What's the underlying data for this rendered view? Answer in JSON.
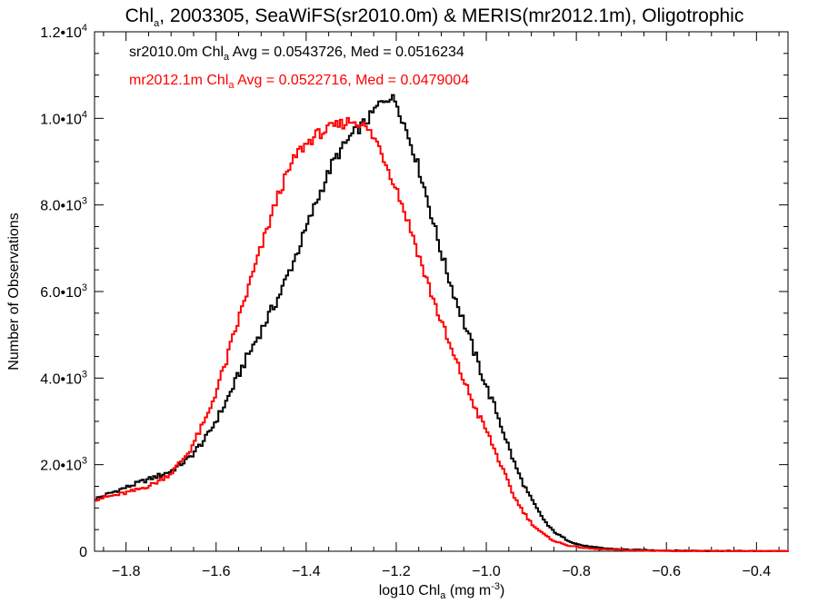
{
  "chart_data": {
    "type": "line",
    "title": {
      "pre": "Chl",
      "sub": "a",
      "post": ", 2003305, SeaWiFS(sr2010.0m) & MERIS(mr2012.1m), Oligotrophic"
    },
    "xlabel": {
      "pre": "log10 Chl",
      "sub": "a",
      "post": " (mg m",
      "sup": "-3",
      "end": ")"
    },
    "ylabel": "Number of Observations",
    "xlim": [
      -1.87,
      -0.33
    ],
    "ylim": [
      0,
      12000
    ],
    "x_ticks": [
      {
        "value": -1.8,
        "label": "−1.8"
      },
      {
        "value": -1.6,
        "label": "−1.6"
      },
      {
        "value": -1.4,
        "label": "−1.4"
      },
      {
        "value": -1.2,
        "label": "−1.2"
      },
      {
        "value": -1.0,
        "label": "−1.0"
      },
      {
        "value": -0.8,
        "label": "−0.8"
      },
      {
        "value": -0.6,
        "label": "−0.6"
      },
      {
        "value": -0.4,
        "label": "−0.4"
      }
    ],
    "y_ticks": [
      {
        "value": 0,
        "mant": "0",
        "exp": ""
      },
      {
        "value": 2000,
        "mant": "2.0•10",
        "exp": "3"
      },
      {
        "value": 4000,
        "mant": "4.0•10",
        "exp": "3"
      },
      {
        "value": 6000,
        "mant": "6.0•10",
        "exp": "3"
      },
      {
        "value": 8000,
        "mant": "8.0•10",
        "exp": "3"
      },
      {
        "value": 10000,
        "mant": "1.0•10",
        "exp": "4"
      },
      {
        "value": 12000,
        "mant": "1.2•10",
        "exp": "4"
      }
    ],
    "grid": false,
    "legend_position": "top-left",
    "series": [
      {
        "name": "sr2010.0m",
        "color": "#000000",
        "legend": {
          "pre": "sr2010.0m Chl",
          "sub": "a",
          "post": " Avg = 0.0543726, Med = 0.0516234"
        },
        "x": [
          -1.87,
          -1.82,
          -1.78,
          -1.74,
          -1.7,
          -1.66,
          -1.62,
          -1.58,
          -1.54,
          -1.5,
          -1.46,
          -1.42,
          -1.38,
          -1.34,
          -1.3,
          -1.26,
          -1.24,
          -1.22,
          -1.2,
          -1.18,
          -1.16,
          -1.14,
          -1.12,
          -1.1,
          -1.08,
          -1.06,
          -1.04,
          -1.02,
          -1.0,
          -0.98,
          -0.96,
          -0.94,
          -0.92,
          -0.9,
          -0.88,
          -0.86,
          -0.84,
          -0.82,
          -0.8,
          -0.78,
          -0.76,
          -0.74,
          -0.72,
          -0.7,
          -0.68,
          -0.66,
          -0.64,
          -0.62,
          -0.6,
          -0.55,
          -0.5,
          -0.45,
          -0.4,
          -0.33
        ],
        "y": [
          1200,
          1400,
          1550,
          1700,
          1850,
          2150,
          2650,
          3400,
          4300,
          5100,
          5900,
          6900,
          8000,
          9000,
          9600,
          10000,
          10300,
          10500,
          10400,
          9800,
          9200,
          8500,
          7700,
          6900,
          6200,
          5600,
          5000,
          4400,
          3800,
          3300,
          2700,
          2100,
          1600,
          1200,
          850,
          550,
          380,
          260,
          170,
          120,
          90,
          70,
          55,
          45,
          35,
          30,
          25,
          20,
          15,
          10,
          8,
          5,
          3,
          2
        ]
      },
      {
        "name": "mr2012.1m",
        "color": "#ff0000",
        "legend": {
          "pre": "mr2012.1m Chl",
          "sub": "a",
          "post": " Avg = 0.0522716, Med = 0.0479004"
        },
        "x": [
          -1.87,
          -1.82,
          -1.78,
          -1.74,
          -1.7,
          -1.66,
          -1.62,
          -1.58,
          -1.54,
          -1.5,
          -1.46,
          -1.42,
          -1.38,
          -1.34,
          -1.3,
          -1.28,
          -1.26,
          -1.24,
          -1.22,
          -1.2,
          -1.18,
          -1.16,
          -1.14,
          -1.12,
          -1.1,
          -1.08,
          -1.06,
          -1.04,
          -1.02,
          -1.0,
          -0.98,
          -0.96,
          -0.94,
          -0.92,
          -0.9,
          -0.88,
          -0.86,
          -0.84,
          -0.82,
          -0.8,
          -0.78,
          -0.76,
          -0.74,
          -0.72,
          -0.7,
          -0.68,
          -0.66,
          -0.64,
          -0.62,
          -0.6,
          -0.55,
          -0.5,
          -0.45,
          -0.4,
          -0.33
        ],
        "y": [
          1200,
          1300,
          1400,
          1550,
          1800,
          2300,
          3100,
          4300,
          5700,
          7000,
          8300,
          9200,
          9600,
          9800,
          9950,
          9900,
          9700,
          9400,
          8900,
          8400,
          7800,
          7200,
          6500,
          5900,
          5300,
          4700,
          4200,
          3700,
          3200,
          2800,
          2300,
          1800,
          1300,
          950,
          650,
          450,
          300,
          200,
          140,
          100,
          75,
          55,
          45,
          35,
          28,
          22,
          18,
          15,
          12,
          10,
          7,
          5,
          3,
          2,
          1
        ]
      }
    ]
  }
}
